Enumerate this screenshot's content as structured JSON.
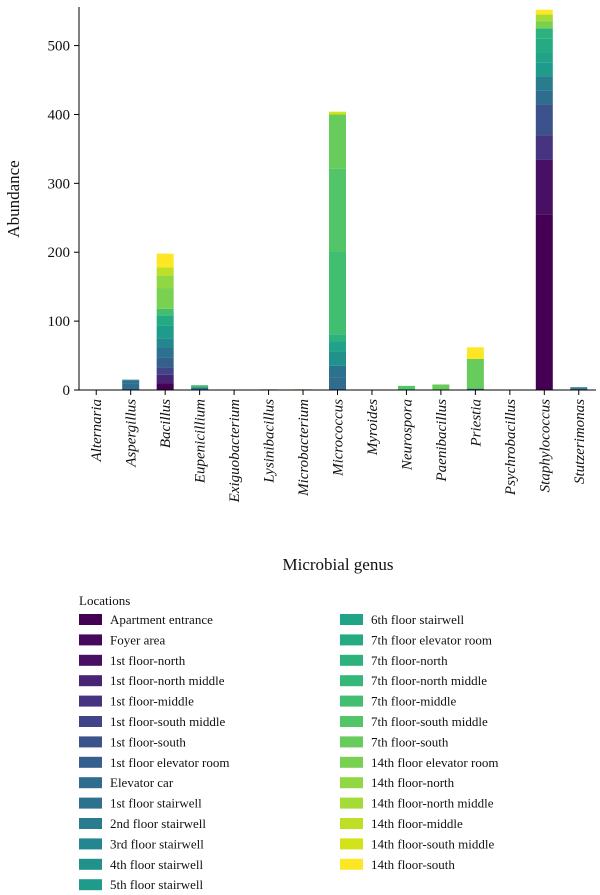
{
  "chart_data": {
    "type": "bar",
    "stacked": true,
    "xlabel": "Microbial genus",
    "ylabel": "Abundance",
    "ylim": [
      0,
      556
    ],
    "yticks": [
      0,
      100,
      200,
      300,
      400,
      500
    ],
    "legend_title": "Locations",
    "legend_placement": "bottom",
    "grid": false,
    "categories": [
      "Alternaria",
      "Aspergillus",
      "Bacillus",
      "Eupenicillium",
      "Exiguobacterium",
      "Lysinibacillus",
      "Microbacterium",
      "Micrococcus",
      "Myroides",
      "Neurospora",
      "Paenibacillus",
      "Priestia",
      "Psychrobacillus",
      "Staphylococcus",
      "Stutzerimonas"
    ],
    "series": [
      {
        "name": "Apartment entrance",
        "color": "#440154",
        "values": [
          0,
          0,
          10,
          0,
          0,
          0,
          0,
          0,
          0,
          0,
          0,
          0,
          0,
          255,
          0
        ]
      },
      {
        "name": "Foyer area",
        "color": "#46085c",
        "values": [
          0,
          0,
          0,
          0,
          0,
          0,
          0,
          0,
          0,
          0,
          0,
          0,
          0,
          0,
          0
        ]
      },
      {
        "name": "1st floor-north",
        "color": "#471063",
        "values": [
          0,
          0,
          0,
          0,
          0,
          0,
          0,
          0,
          0,
          0,
          0,
          0,
          0,
          80,
          0
        ]
      },
      {
        "name": "1st floor-north middle",
        "color": "#482475",
        "values": [
          0,
          0,
          12,
          0,
          0,
          0,
          0,
          0,
          0,
          0,
          0,
          0,
          0,
          0,
          0
        ]
      },
      {
        "name": "1st floor-middle",
        "color": "#463480",
        "values": [
          0,
          0,
          0,
          0,
          0,
          0,
          0,
          0,
          0,
          0,
          0,
          0,
          0,
          35,
          0
        ]
      },
      {
        "name": "1st floor-south middle",
        "color": "#414487",
        "values": [
          0,
          0,
          10,
          0,
          0,
          0,
          0,
          0,
          0,
          0,
          0,
          0,
          0,
          0,
          0
        ]
      },
      {
        "name": "1st floor-south",
        "color": "#3b528b",
        "values": [
          0,
          0,
          0,
          0,
          0,
          0,
          0,
          0,
          0,
          0,
          0,
          0,
          0,
          45,
          0
        ]
      },
      {
        "name": "1st floor elevator room",
        "color": "#355f8d",
        "values": [
          0,
          0,
          15,
          0,
          0,
          0,
          0,
          0,
          0,
          0,
          0,
          0,
          0,
          0,
          0
        ]
      },
      {
        "name": "Elevator car",
        "color": "#2f6c8e",
        "values": [
          0,
          10,
          0,
          0,
          0,
          0,
          0,
          18,
          0,
          0,
          0,
          0,
          0,
          20,
          2
        ]
      },
      {
        "name": "1st floor stairwell",
        "color": "#2c728e",
        "values": [
          0,
          4,
          14,
          4,
          0,
          0,
          0,
          17,
          0,
          0,
          0,
          2,
          0,
          0,
          2
        ]
      },
      {
        "name": "2nd floor stairwell",
        "color": "#287c8e",
        "values": [
          0,
          1,
          0,
          0,
          0,
          0,
          0,
          0,
          0,
          0,
          0,
          0,
          0,
          20,
          0
        ]
      },
      {
        "name": "3rd floor stairwell",
        "color": "#24868e",
        "values": [
          0,
          0,
          14,
          0,
          0,
          0,
          0,
          0,
          0,
          0,
          0,
          0,
          0,
          0,
          0
        ]
      },
      {
        "name": "4th floor stairwell",
        "color": "#21918c",
        "values": [
          0,
          0,
          0,
          0,
          0,
          0,
          0,
          21,
          0,
          0,
          0,
          0,
          0,
          0,
          0
        ]
      },
      {
        "name": "5th floor stairwell",
        "color": "#1e9b8a",
        "values": [
          0,
          0,
          18,
          0,
          0,
          0,
          0,
          0,
          0,
          0,
          0,
          0,
          0,
          20,
          0
        ]
      },
      {
        "name": "6th floor stairwell",
        "color": "#20a386",
        "values": [
          0,
          0,
          0,
          0,
          0,
          0,
          0,
          15,
          0,
          0,
          0,
          0,
          0,
          15,
          0
        ]
      },
      {
        "name": "7th floor elevator room",
        "color": "#25ab82",
        "values": [
          0,
          0,
          15,
          0,
          0,
          0,
          0,
          0,
          0,
          0,
          0,
          0,
          0,
          20,
          0
        ]
      },
      {
        "name": "7th floor-north",
        "color": "#2db27d",
        "values": [
          0,
          0,
          0,
          0,
          0,
          0,
          0,
          10,
          0,
          0,
          0,
          0,
          0,
          15,
          0
        ]
      },
      {
        "name": "7th floor-north middle",
        "color": "#35b779",
        "values": [
          0,
          0,
          0,
          0,
          0,
          0,
          0,
          0,
          0,
          0,
          0,
          0,
          0,
          0,
          0
        ]
      },
      {
        "name": "7th floor-middle",
        "color": "#42be71",
        "values": [
          0,
          0,
          10,
          3,
          0,
          0,
          0,
          120,
          0,
          0,
          0,
          0,
          0,
          0,
          0
        ]
      },
      {
        "name": "7th floor-south middle",
        "color": "#52c569",
        "values": [
          0,
          0,
          0,
          0,
          0,
          0,
          0,
          120,
          0,
          6,
          0,
          0,
          0,
          0,
          0
        ]
      },
      {
        "name": "7th floor-south",
        "color": "#67cc5c",
        "values": [
          0,
          0,
          0,
          0,
          0,
          1,
          0,
          79,
          0,
          0,
          8,
          43,
          0,
          0,
          0
        ]
      },
      {
        "name": "14th floor elevator room",
        "color": "#7ad151",
        "values": [
          0,
          0,
          30,
          0,
          0,
          0,
          0,
          0,
          0,
          0,
          0,
          0,
          0,
          10,
          0
        ]
      },
      {
        "name": "14th floor-north",
        "color": "#90d743",
        "values": [
          0,
          0,
          18,
          0,
          0,
          0,
          0,
          0,
          0,
          0,
          0,
          0,
          0,
          0,
          0
        ]
      },
      {
        "name": "14th floor-north middle",
        "color": "#a5db36",
        "values": [
          0,
          0,
          0,
          0,
          0,
          0,
          1,
          0,
          0,
          0,
          0,
          0,
          0,
          10,
          0
        ]
      },
      {
        "name": "14th floor-middle",
        "color": "#bddf26",
        "values": [
          0,
          0,
          12,
          0,
          0,
          0,
          0,
          0,
          0,
          0,
          0,
          0,
          0,
          0,
          0
        ]
      },
      {
        "name": "14th floor-south middle",
        "color": "#d2e21b",
        "values": [
          0,
          0,
          0,
          0,
          0,
          0,
          0,
          4,
          0,
          0,
          0,
          0,
          0,
          0,
          0
        ]
      },
      {
        "name": "14th floor-south",
        "color": "#fde725",
        "values": [
          0,
          0,
          20,
          0,
          0,
          0,
          0,
          0,
          0,
          0,
          0,
          17,
          0,
          7,
          0
        ]
      }
    ]
  }
}
